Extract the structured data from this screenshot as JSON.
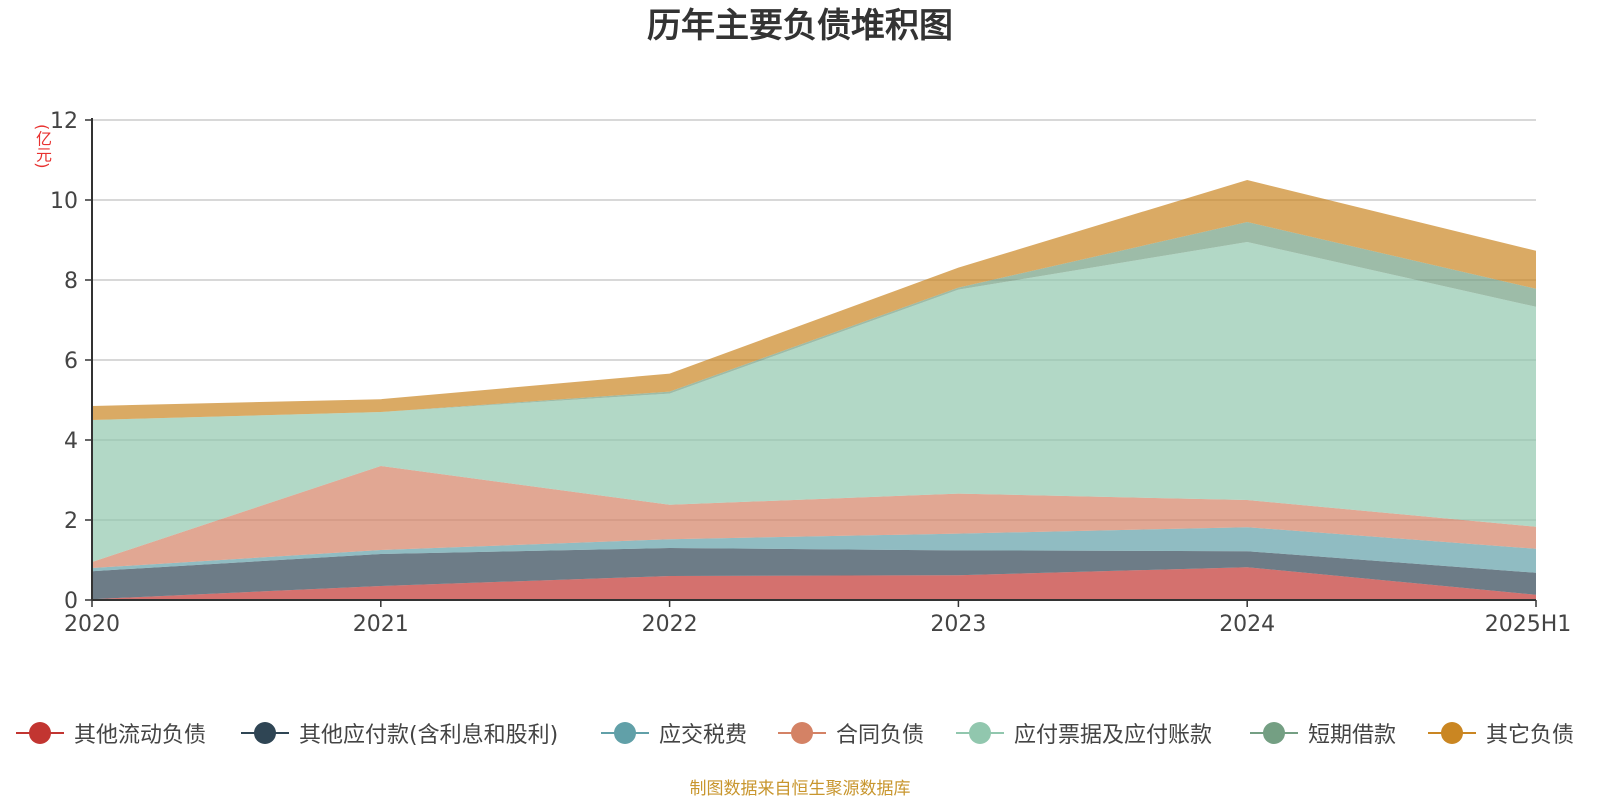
{
  "chart_data": {
    "type": "area",
    "stacked": true,
    "title": "历年主要负债堆积图",
    "ylabel": "(亿元)",
    "xlabel": "",
    "categories": [
      "2020",
      "2021",
      "2022",
      "2023",
      "2024",
      "2025H1"
    ],
    "ylim": [
      0,
      12
    ],
    "yticks": [
      "0",
      "2",
      "4",
      "6",
      "8",
      "10",
      "12"
    ],
    "grid": true,
    "legend_position": "bottom",
    "series": [
      {
        "name": "其他流动负债",
        "color": "#c23531",
        "values": [
          0.02,
          0.35,
          0.6,
          0.62,
          0.82,
          0.13
        ]
      },
      {
        "name": "其他应付款(含利息和股利)",
        "color": "#2f4554",
        "values": [
          0.7,
          0.8,
          0.7,
          0.62,
          0.4,
          0.55
        ]
      },
      {
        "name": "应交税费",
        "color": "#61a0a8",
        "values": [
          0.08,
          0.1,
          0.22,
          0.42,
          0.6,
          0.6
        ]
      },
      {
        "name": "合同负债",
        "color": "#d48265",
        "values": [
          0.15,
          2.1,
          0.86,
          1.0,
          0.68,
          0.55
        ]
      },
      {
        "name": "应付票据及应付账款",
        "color": "#91c7ae",
        "values": [
          3.55,
          1.35,
          2.78,
          5.1,
          6.45,
          5.5
        ]
      },
      {
        "name": "短期借款",
        "color": "#749f83",
        "values": [
          0.0,
          0.0,
          0.05,
          0.05,
          0.5,
          0.45
        ]
      },
      {
        "name": "其它负债",
        "color": "#ca8622",
        "values": [
          0.35,
          0.32,
          0.45,
          0.5,
          1.05,
          0.95
        ]
      }
    ]
  },
  "footer": {
    "source": "制图数据来自恒生聚源数据库"
  }
}
